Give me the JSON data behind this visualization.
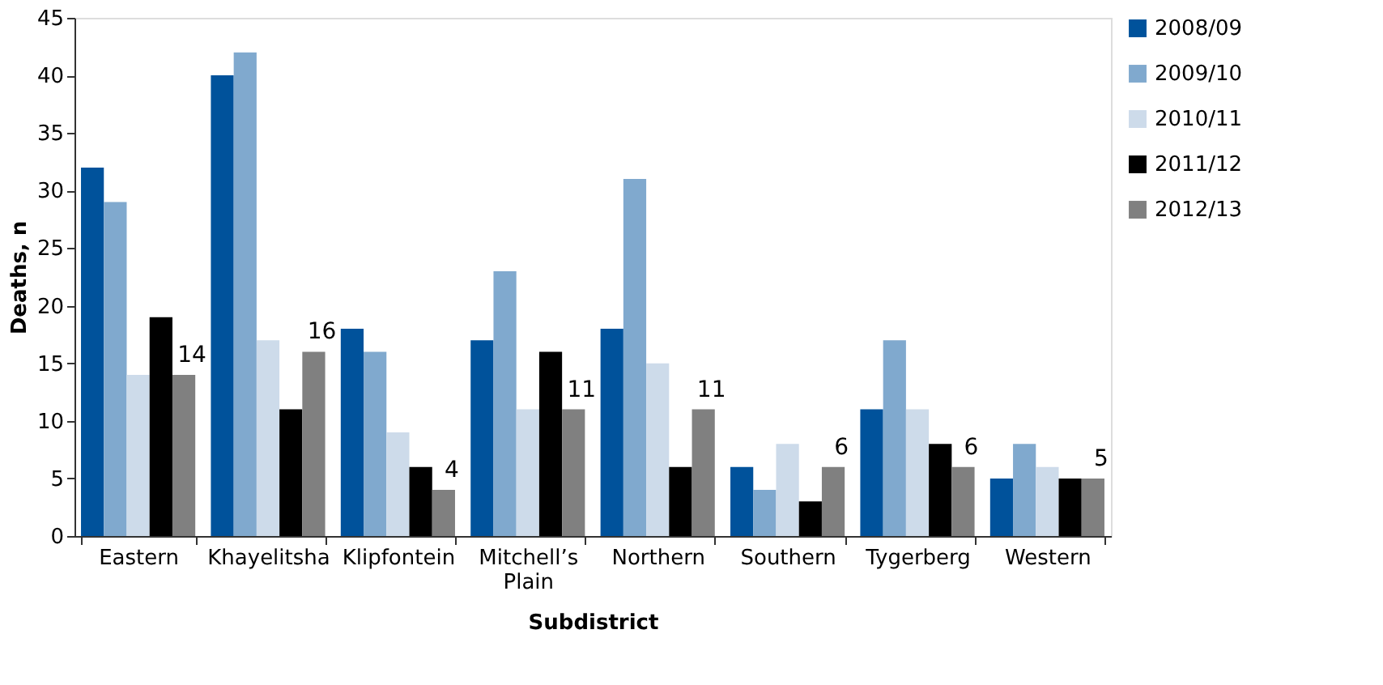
{
  "chart_data": {
    "type": "bar",
    "xlabel": "Subdistrict",
    "ylabel": "Deaths, n",
    "categories": [
      "Eastern",
      "Khayelitsha",
      "Klipfontein",
      "Mitchell’s Plain",
      "Northern",
      "Southern",
      "Tygerberg",
      "Western"
    ],
    "series": [
      {
        "name": "2008/09",
        "color": "#00529b",
        "values": [
          32,
          40,
          18,
          17,
          18,
          6,
          11,
          5
        ]
      },
      {
        "name": "2009/10",
        "color": "#80a9ce",
        "values": [
          29,
          42,
          16,
          23,
          31,
          4,
          17,
          8
        ]
      },
      {
        "name": "2010/11",
        "color": "#cddbea",
        "values": [
          14,
          17,
          9,
          11,
          15,
          8,
          11,
          6
        ]
      },
      {
        "name": "2011/12",
        "color": "#000000",
        "values": [
          19,
          11,
          6,
          16,
          6,
          3,
          8,
          5
        ]
      },
      {
        "name": "2012/13",
        "color": "#808080",
        "values": [
          14,
          16,
          4,
          11,
          11,
          6,
          6,
          5
        ],
        "value_labels": [
          "14",
          "16",
          "4",
          "11",
          "11",
          "6",
          "6",
          "5"
        ]
      }
    ],
    "ylim": [
      0,
      45
    ],
    "yticks": [
      0,
      5,
      10,
      15,
      20,
      25,
      30,
      35,
      40,
      45
    ],
    "grid": false,
    "legend": "top right"
  }
}
